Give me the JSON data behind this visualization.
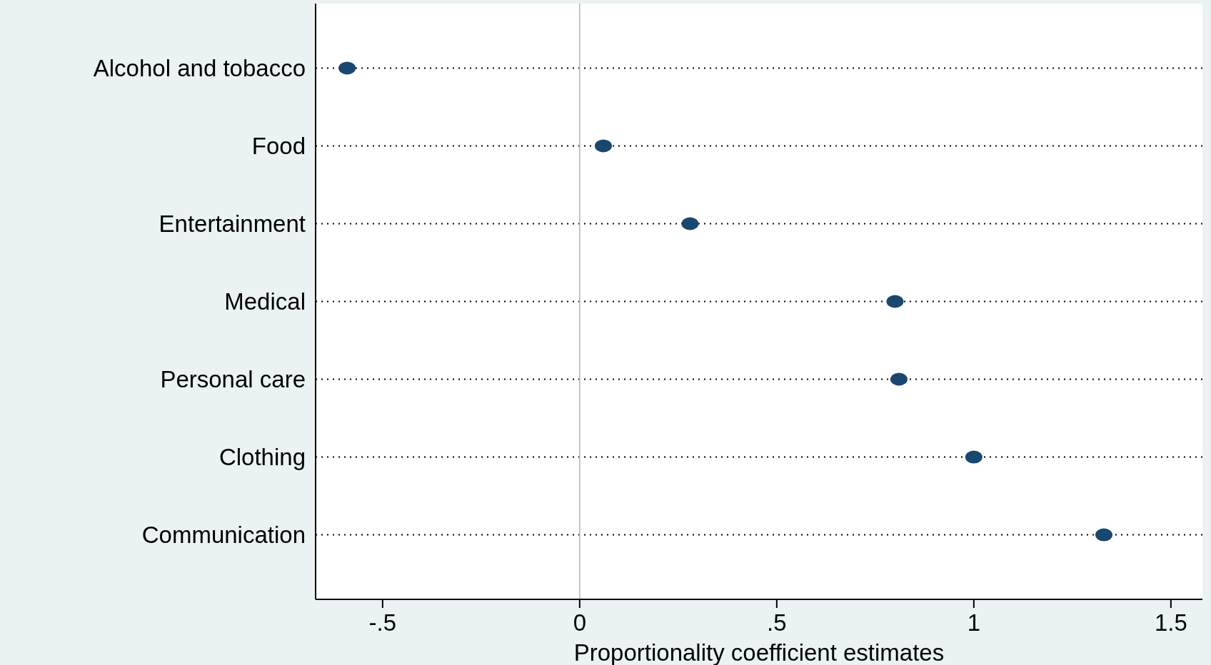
{
  "chart_data": {
    "type": "scatter",
    "orientation": "horizontal",
    "xlabel": "Proportionality coefficient estimates",
    "categories": [
      "Alcohol and tobacco",
      "Food",
      "Entertainment",
      "Medical",
      "Personal care",
      "Clothing",
      "Communication"
    ],
    "values": [
      -0.59,
      0.06,
      0.28,
      0.8,
      0.81,
      1.0,
      1.33
    ],
    "color": "#1a476f",
    "marker": "circle",
    "xlim": [
      -0.67,
      1.58
    ],
    "xticks": [
      {
        "value": -0.5,
        "label": "-.5"
      },
      0,
      {
        "value": 0.5,
        "label": ".5"
      },
      1,
      1.5
    ],
    "grid": "y",
    "ref_lines": [
      {
        "axis": "x",
        "value": 0,
        "color": "#b4b4b4"
      }
    ]
  }
}
